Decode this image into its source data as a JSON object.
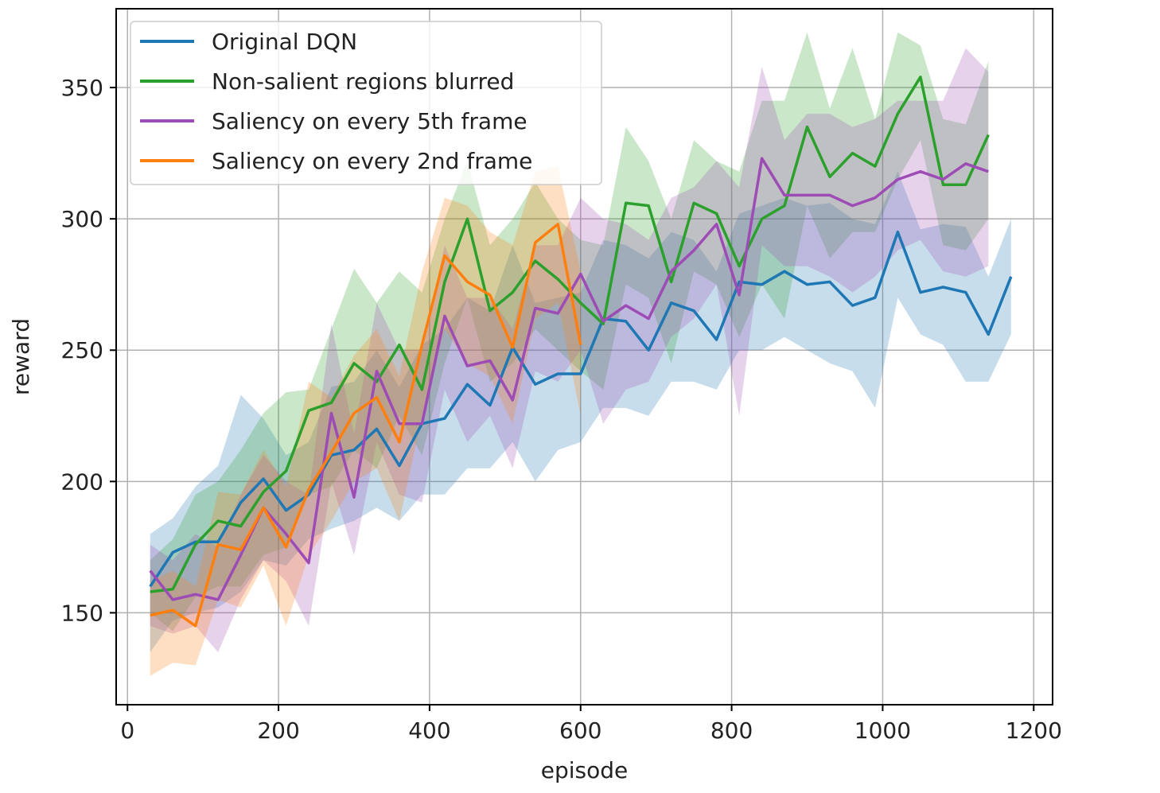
{
  "chart_data": {
    "type": "line",
    "title": "",
    "xlabel": "episode",
    "ylabel": "reward",
    "xlim": [
      -15,
      1225
    ],
    "ylim": [
      115,
      380
    ],
    "xticks": [
      0,
      200,
      400,
      600,
      800,
      1000,
      1200
    ],
    "yticks": [
      150,
      200,
      250,
      300,
      350
    ],
    "grid": true,
    "legend_position": "top-left",
    "series": [
      {
        "name": "Original DQN",
        "color": "#1f77b4",
        "x": [
          30,
          60,
          90,
          120,
          150,
          180,
          210,
          240,
          270,
          300,
          330,
          360,
          390,
          420,
          450,
          480,
          510,
          540,
          570,
          600,
          630,
          660,
          690,
          720,
          750,
          780,
          810,
          840,
          870,
          900,
          930,
          960,
          990,
          1020,
          1050,
          1080,
          1110,
          1140,
          1170
        ],
        "y": [
          160,
          173,
          177,
          177,
          192,
          201,
          189,
          195,
          210,
          212,
          220,
          206,
          222,
          224,
          237,
          229,
          251,
          237,
          241,
          241,
          262,
          261,
          250,
          268,
          265,
          254,
          276,
          275,
          280,
          275,
          276,
          267,
          270,
          295,
          272,
          274,
          272,
          256,
          278
        ],
        "lower": [
          135,
          147,
          150,
          152,
          158,
          170,
          168,
          178,
          182,
          185,
          190,
          185,
          195,
          195,
          205,
          205,
          215,
          200,
          212,
          215,
          228,
          228,
          225,
          238,
          238,
          235,
          250,
          250,
          255,
          250,
          245,
          242,
          228,
          270,
          256,
          252,
          238,
          238,
          256
        ],
        "upper": [
          180,
          186,
          198,
          206,
          233,
          224,
          210,
          215,
          236,
          238,
          250,
          236,
          252,
          258,
          270,
          265,
          290,
          268,
          270,
          272,
          292,
          290,
          285,
          295,
          292,
          280,
          302,
          305,
          308,
          305,
          306,
          300,
          298,
          318,
          296,
          298,
          297,
          278,
          300
        ]
      },
      {
        "name": "Non-salient regions blurred",
        "color": "#2ca02c",
        "x": [
          30,
          60,
          90,
          120,
          150,
          180,
          210,
          240,
          270,
          300,
          330,
          360,
          390,
          420,
          450,
          480,
          510,
          540,
          570,
          600,
          630,
          660,
          690,
          720,
          750,
          780,
          810,
          840,
          870,
          900,
          930,
          960,
          990,
          1020,
          1050,
          1080,
          1110,
          1140
        ],
        "y": [
          158,
          159,
          176,
          185,
          183,
          196,
          204,
          227,
          230,
          245,
          238,
          252,
          235,
          276,
          300,
          265,
          272,
          284,
          277,
          268,
          260,
          306,
          305,
          276,
          306,
          302,
          282,
          300,
          305,
          335,
          316,
          325,
          320,
          340,
          354,
          313,
          313,
          332
        ],
        "lower": [
          150,
          143,
          156,
          160,
          160,
          172,
          175,
          195,
          198,
          212,
          205,
          225,
          210,
          245,
          270,
          238,
          245,
          258,
          250,
          242,
          235,
          275,
          270,
          245,
          280,
          275,
          255,
          275,
          262,
          305,
          285,
          295,
          295,
          315,
          330,
          290,
          288,
          300
        ],
        "upper": [
          170,
          178,
          195,
          200,
          212,
          226,
          234,
          235,
          258,
          281,
          268,
          280,
          272,
          300,
          322,
          290,
          300,
          314,
          300,
          292,
          290,
          335,
          322,
          300,
          330,
          322,
          318,
          345,
          345,
          371,
          342,
          365,
          338,
          371,
          366,
          338,
          336,
          360
        ]
      },
      {
        "name": "Saliency on every 5th frame",
        "color": "#9e4cb5",
        "x": [
          30,
          60,
          90,
          120,
          150,
          180,
          210,
          240,
          270,
          300,
          330,
          360,
          390,
          420,
          450,
          480,
          510,
          540,
          570,
          600,
          630,
          660,
          690,
          720,
          750,
          780,
          810,
          840,
          870,
          900,
          930,
          960,
          990,
          1020,
          1050,
          1080,
          1110,
          1140
        ],
        "y": [
          166,
          155,
          157,
          155,
          172,
          190,
          180,
          169,
          226,
          194,
          242,
          222,
          222,
          263,
          244,
          246,
          231,
          266,
          264,
          279,
          261,
          267,
          262,
          280,
          288,
          298,
          271,
          323,
          309,
          309,
          309,
          305,
          308,
          315,
          318,
          315,
          321,
          318
        ],
        "lower": [
          145,
          142,
          145,
          135,
          155,
          170,
          162,
          145,
          200,
          172,
          215,
          195,
          192,
          235,
          215,
          225,
          205,
          242,
          238,
          250,
          222,
          235,
          238,
          255,
          262,
          275,
          225,
          290,
          282,
          282,
          278,
          272,
          278,
          288,
          292,
          280,
          278,
          282
        ],
        "upper": [
          176,
          170,
          180,
          175,
          195,
          210,
          200,
          195,
          260,
          218,
          268,
          250,
          250,
          290,
          270,
          270,
          258,
          290,
          290,
          308,
          300,
          298,
          292,
          308,
          312,
          322,
          312,
          358,
          330,
          340,
          340,
          335,
          338,
          345,
          345,
          345,
          365,
          356
        ]
      },
      {
        "name": "Saliency on every 2nd frame",
        "color": "#ff7f0e",
        "x": [
          30,
          60,
          90,
          120,
          150,
          180,
          210,
          240,
          270,
          300,
          330,
          360,
          390,
          420,
          450,
          480,
          510,
          540,
          570,
          600
        ],
        "y": [
          149,
          151,
          145,
          176,
          174,
          190,
          175,
          197,
          211,
          226,
          232,
          215,
          252,
          286,
          276,
          271,
          251,
          291,
          298,
          252
        ],
        "lower": [
          126,
          131,
          130,
          155,
          152,
          168,
          145,
          172,
          185,
          200,
          205,
          185,
          225,
          258,
          245,
          240,
          222,
          262,
          268,
          225
        ],
        "upper": [
          162,
          166,
          160,
          196,
          195,
          212,
          198,
          238,
          232,
          248,
          258,
          240,
          280,
          308,
          305,
          295,
          290,
          318,
          320,
          280
        ]
      }
    ]
  }
}
